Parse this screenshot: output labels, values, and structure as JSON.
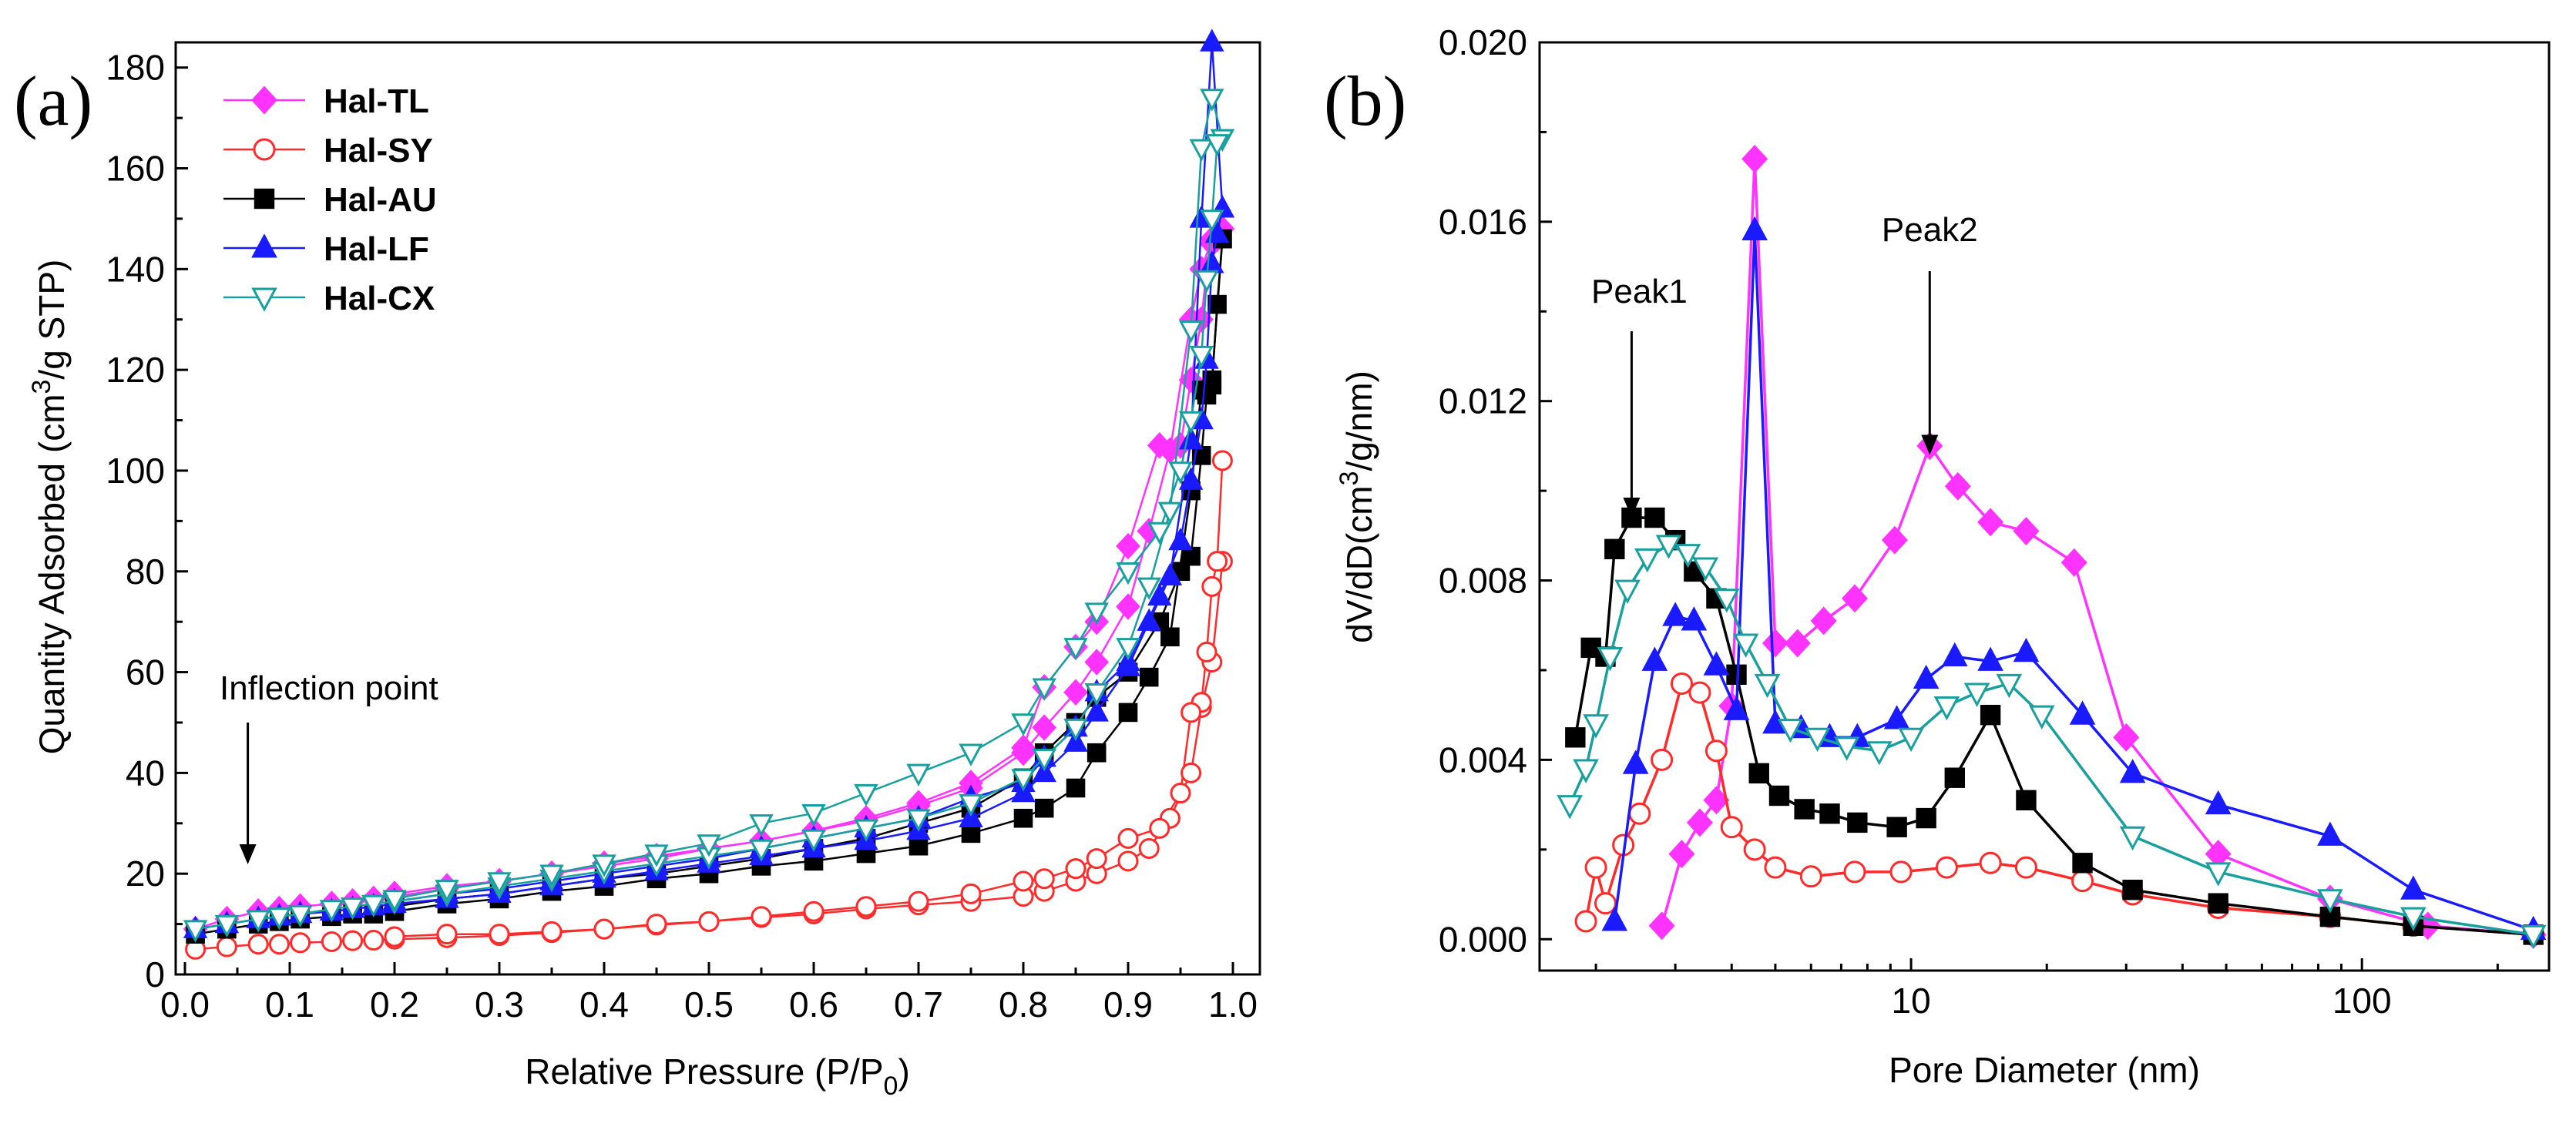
{
  "chart_data": [
    {
      "type": "line",
      "panel_label": "(a)",
      "xlabel_main": "Relative Pressure (P/P",
      "xlabel_sub": "0",
      "xlabel_end": ")",
      "ylabel_pre": "Quantity Adsorbed (cm",
      "ylabel_sup": "3",
      "ylabel_post": "/g STP)",
      "xlim": [
        0,
        1.0
      ],
      "ylim": [
        0,
        185
      ],
      "xticks": [
        0.0,
        0.1,
        0.2,
        0.3,
        0.4,
        0.5,
        0.6,
        0.7,
        0.8,
        0.9,
        1.0
      ],
      "xtick_labels": [
        "0.0",
        "0.1",
        "0.2",
        "0.3",
        "0.4",
        "0.5",
        "0.6",
        "0.7",
        "0.8",
        "0.9",
        "1.0"
      ],
      "yticks": [
        0,
        20,
        40,
        60,
        80,
        100,
        120,
        140,
        160,
        180
      ],
      "ytick_labels": [
        "0",
        "20",
        "40",
        "60",
        "80",
        "100",
        "120",
        "140",
        "160",
        "180"
      ],
      "annotation": "Inflection point",
      "annotation_x": 0.06,
      "legend_position": "top-left",
      "x_ads": [
        0.01,
        0.04,
        0.07,
        0.09,
        0.11,
        0.14,
        0.16,
        0.18,
        0.2,
        0.25,
        0.3,
        0.35,
        0.4,
        0.45,
        0.5,
        0.55,
        0.6,
        0.65,
        0.7,
        0.75,
        0.8,
        0.82,
        0.85,
        0.87,
        0.9,
        0.92,
        0.94,
        0.96,
        0.97,
        0.98,
        0.99
      ],
      "x_des": [
        0.99,
        0.985,
        0.98,
        0.975,
        0.97,
        0.96,
        0.95,
        0.93,
        0.9,
        0.87,
        0.85,
        0.82,
        0.8,
        0.75,
        0.7,
        0.65,
        0.6,
        0.55,
        0.5,
        0.45,
        0.4,
        0.35,
        0.3,
        0.25,
        0.2
      ],
      "series": [
        {
          "name": "Hal-TL",
          "color": "#ff33ff",
          "marker": "diamond",
          "fill": "#ff33ff",
          "ads": [
            9,
            11,
            12.5,
            13,
            13.5,
            14,
            14.5,
            15,
            15.5,
            17,
            18.5,
            20,
            21.5,
            23,
            25,
            26.5,
            28.5,
            30.5,
            33.5,
            37,
            44,
            49,
            56,
            62,
            73,
            88,
            104,
            130,
            140,
            146,
            148
          ],
          "des": [
            148,
            146,
            145,
            140,
            130,
            118,
            105,
            105,
            85,
            70,
            65,
            57,
            45,
            38,
            34,
            31,
            28.5,
            26.5,
            25,
            23.5,
            22,
            20,
            18.5,
            17.5,
            16
          ]
        },
        {
          "name": "Hal-SY",
          "color": "#ff2a2a",
          "marker": "circle",
          "fill": "#ffffff",
          "ads": [
            5,
            5.5,
            6,
            6,
            6.3,
            6.5,
            6.7,
            6.8,
            7,
            7.3,
            7.7,
            8.3,
            9,
            9.8,
            10.5,
            11.3,
            12,
            13,
            13.8,
            14.5,
            15.5,
            16.5,
            18.5,
            20,
            22.5,
            25,
            31,
            40,
            53,
            62,
            82
          ],
          "des": [
            102,
            82,
            77,
            64,
            54,
            52,
            36,
            29,
            27,
            23,
            21,
            19,
            18.5,
            16,
            14.5,
            13.5,
            12.5,
            11.5,
            10.5,
            10,
            9,
            8.5,
            8,
            8,
            7.5
          ]
        },
        {
          "name": "Hal-AU",
          "color": "#000000",
          "marker": "square",
          "fill": "#000000",
          "ads": [
            8,
            9,
            10,
            10.5,
            11,
            11.5,
            12,
            12,
            12.5,
            14,
            15,
            16.5,
            17.5,
            19,
            20,
            21.5,
            22.5,
            24,
            25.5,
            28,
            31,
            33,
            37,
            44,
            52,
            59,
            67,
            96,
            116,
            118,
            146
          ],
          "des": [
            146,
            133,
            117,
            115,
            103,
            83,
            80,
            70,
            60,
            55,
            50,
            44,
            39,
            33,
            30,
            27,
            25,
            23,
            21.5,
            20,
            19,
            17.5,
            16,
            15,
            13.5
          ]
        },
        {
          "name": "Hal-LF",
          "color": "#1a1aff",
          "marker": "triangle",
          "fill": "#1a1aff",
          "ads": [
            9,
            10,
            11,
            11.5,
            12,
            12.5,
            13,
            13.5,
            14,
            15,
            16,
            17.5,
            19,
            20.5,
            22,
            23.5,
            25,
            26.5,
            28.5,
            31,
            36,
            40,
            46,
            52,
            61,
            70,
            79,
            106,
            150,
            185,
            152
          ],
          "des": [
            152,
            147,
            141,
            122,
            110,
            98,
            86,
            75,
            62,
            56,
            49,
            43,
            38,
            35,
            31,
            29,
            27,
            25,
            23,
            21.5,
            20,
            18.5,
            17,
            16,
            14.5
          ]
        },
        {
          "name": "Hal-CX",
          "color": "#1a9f9f",
          "marker": "triangle-down",
          "fill": "#ffffff",
          "ads": [
            9,
            10,
            11,
            11.5,
            12,
            13,
            13.5,
            14,
            14.5,
            16,
            17.5,
            19,
            20.5,
            22,
            23.5,
            25,
            27,
            29,
            31,
            34,
            39,
            43,
            49,
            56,
            65,
            77,
            92,
            128,
            164,
            174,
            166
          ],
          "des": [
            166,
            165,
            150,
            138,
            123,
            110,
            100,
            88,
            80,
            72,
            65,
            57,
            50,
            44,
            40,
            36,
            32,
            30,
            26,
            24,
            22,
            20,
            18.5,
            17,
            15
          ]
        }
      ]
    },
    {
      "type": "line",
      "panel_label": "(b)",
      "xlabel": "Pore Diameter (nm)",
      "ylabel": "dV/dD(cm",
      "ylabel_sup": "3",
      "ylabel_post": "/g/nm)",
      "xscale": "log",
      "xlim": [
        1.5,
        260
      ],
      "ylim": [
        -0.0007,
        0.02
      ],
      "yticks": [
        0.0,
        0.004,
        0.008,
        0.012,
        0.016,
        0.02
      ],
      "ytick_labels": [
        "0.000",
        "0.004",
        "0.008",
        "0.012",
        "0.016",
        "0.020"
      ],
      "xticks": [
        10,
        100
      ],
      "xtick_labels": [
        "10",
        "100"
      ],
      "annotations": [
        {
          "text": "Peak1",
          "x": 2.4,
          "y_arrow_tip": 0.0094
        },
        {
          "text": "Peak2",
          "x": 11.0,
          "y_arrow_tip": 0.0108
        }
      ],
      "series": [
        {
          "name": "Hal-TL",
          "color": "#ff33ff",
          "marker": "diamond",
          "fill": "#ff33ff",
          "x": [
            2.8,
            3.1,
            3.4,
            3.7,
            4.0,
            4.5,
            5.0,
            5.6,
            6.4,
            7.5,
            9.2,
            11.0,
            12.7,
            15.0,
            18.0,
            23.0,
            30.0,
            48.0,
            85.0,
            140.0,
            240.0
          ],
          "y": [
            0.0003,
            0.0019,
            0.0026,
            0.0031,
            0.0052,
            0.0174,
            0.0066,
            0.0066,
            0.0071,
            0.0076,
            0.0089,
            0.011,
            0.0101,
            0.0093,
            0.0091,
            0.0084,
            0.0045,
            0.0019,
            0.0009,
            0.0003,
            0.0001
          ]
        },
        {
          "name": "Hal-SY",
          "color": "#ff2a2a",
          "marker": "circle",
          "fill": "#ffffff",
          "x": [
            1.9,
            2.0,
            2.1,
            2.3,
            2.5,
            2.8,
            3.1,
            3.4,
            3.7,
            4.0,
            4.5,
            5.0,
            6.0,
            7.5,
            9.5,
            12.0,
            15.0,
            18.0,
            24.0,
            31.0,
            48.0,
            85.0,
            130.0,
            240.0
          ],
          "y": [
            0.0004,
            0.0016,
            0.0008,
            0.0021,
            0.0028,
            0.004,
            0.0057,
            0.0055,
            0.0042,
            0.0025,
            0.002,
            0.0016,
            0.0014,
            0.0015,
            0.0015,
            0.0016,
            0.0017,
            0.0016,
            0.0013,
            0.001,
            0.0007,
            0.0005,
            0.0003,
            0.0001
          ]
        },
        {
          "name": "Hal-AU",
          "color": "#000000",
          "marker": "square",
          "fill": "#000000",
          "x": [
            1.8,
            1.95,
            2.1,
            2.2,
            2.4,
            2.7,
            3.0,
            3.3,
            3.7,
            4.1,
            4.6,
            5.1,
            5.8,
            6.6,
            7.6,
            9.3,
            10.8,
            12.5,
            15.0,
            18.0,
            24.0,
            31.0,
            48.0,
            85.0,
            130.0,
            240.0
          ],
          "y": [
            0.0045,
            0.0065,
            0.0063,
            0.0087,
            0.0094,
            0.0094,
            0.0089,
            0.0082,
            0.0076,
            0.0059,
            0.0037,
            0.0032,
            0.0029,
            0.0028,
            0.0026,
            0.0025,
            0.0027,
            0.0036,
            0.005,
            0.0031,
            0.0017,
            0.0011,
            0.0008,
            0.0005,
            0.0003,
            0.0001
          ]
        },
        {
          "name": "Hal-LF",
          "color": "#1a1aff",
          "marker": "triangle",
          "fill": "#1a1aff",
          "x": [
            2.2,
            2.45,
            2.7,
            3.0,
            3.3,
            3.7,
            4.1,
            4.5,
            5.0,
            5.7,
            6.6,
            7.6,
            9.3,
            10.8,
            12.5,
            15.0,
            18.0,
            24.0,
            31.0,
            48.0,
            85.0,
            130.0,
            240.0
          ],
          "y": [
            0.0004,
            0.0039,
            0.0062,
            0.0072,
            0.0071,
            0.0061,
            0.0051,
            0.0158,
            0.0048,
            0.0047,
            0.0045,
            0.0045,
            0.0049,
            0.0058,
            0.0063,
            0.0062,
            0.0064,
            0.005,
            0.0037,
            0.003,
            0.0023,
            0.0011,
            0.0002
          ]
        },
        {
          "name": "Hal-CX",
          "color": "#1a9f9f",
          "marker": "triangle-down",
          "fill": "#ffffff",
          "x": [
            1.75,
            1.9,
            2.0,
            2.15,
            2.35,
            2.6,
            2.9,
            3.2,
            3.5,
            3.9,
            4.3,
            4.8,
            5.4,
            6.2,
            7.2,
            8.5,
            10.0,
            12.0,
            14.0,
            16.5,
            19.5,
            31.0,
            48.0,
            85.0,
            130.0,
            240.0
          ],
          "y": [
            0.003,
            0.0038,
            0.0048,
            0.0063,
            0.0078,
            0.0085,
            0.0088,
            0.0086,
            0.0083,
            0.0076,
            0.0066,
            0.0057,
            0.0047,
            0.0045,
            0.0043,
            0.0042,
            0.0045,
            0.0052,
            0.0055,
            0.0057,
            0.005,
            0.0023,
            0.0015,
            0.0009,
            0.0005,
            0.0001
          ]
        }
      ]
    }
  ]
}
